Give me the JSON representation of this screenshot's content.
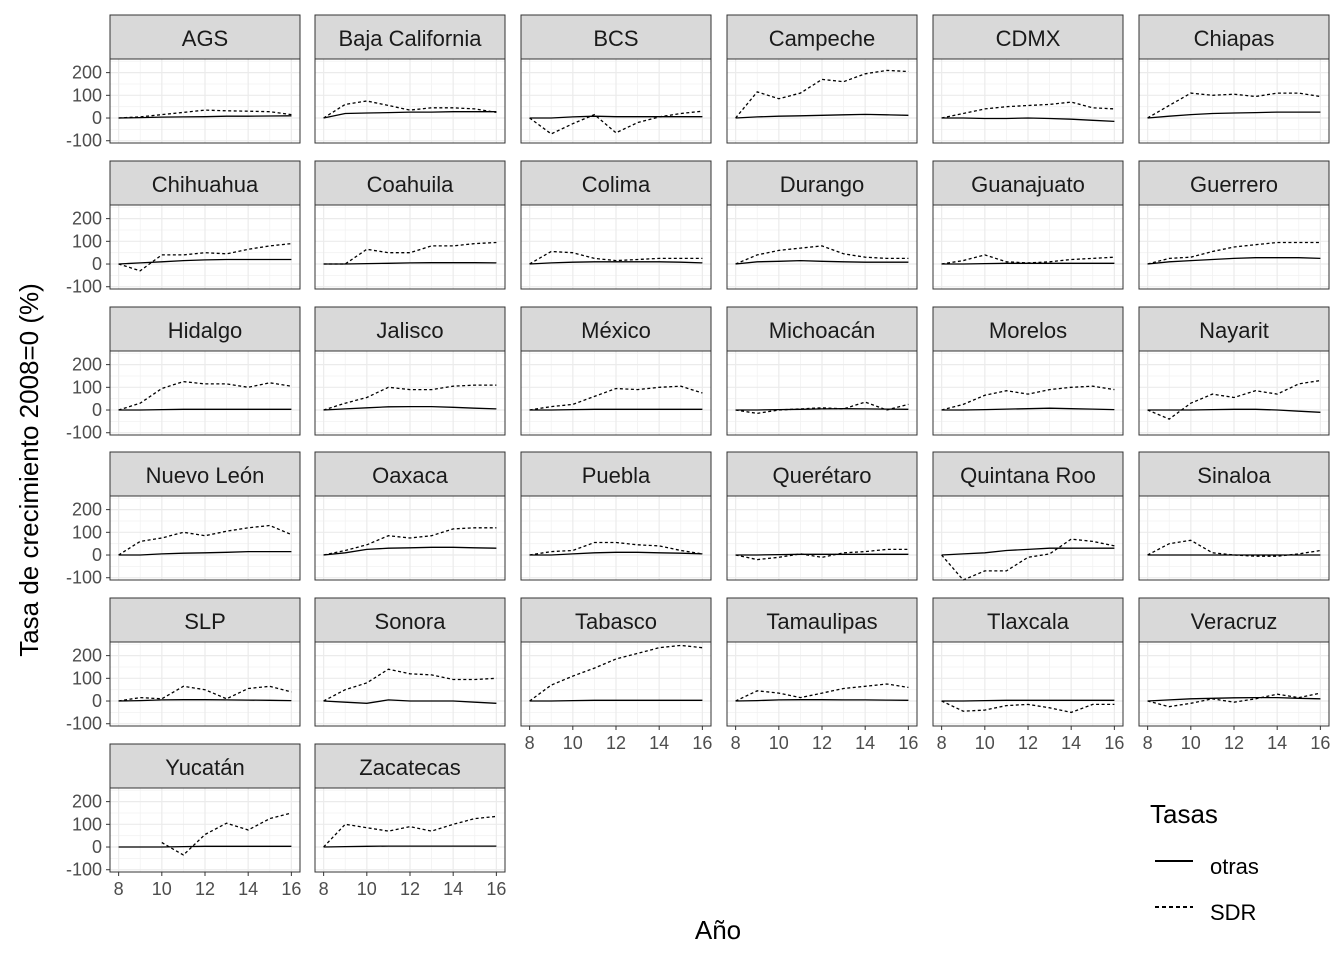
{
  "chart_data": {
    "type": "line",
    "facet_layout": "6 columns x 6 rows (facet_wrap)",
    "ylabel": "Tasa de crecimiento 2008=0 (%)",
    "xlabel": "Año",
    "x": [
      8,
      9,
      10,
      11,
      12,
      13,
      14,
      15,
      16
    ],
    "xlim": [
      7.6,
      16.4
    ],
    "ylim": [
      -110,
      260
    ],
    "x_ticks": [
      8,
      10,
      12,
      14,
      16
    ],
    "y_ticks": [
      -100,
      0,
      100,
      200
    ],
    "grid": true,
    "legend": {
      "title": "Tasas",
      "position": "bottom-right",
      "entries": [
        {
          "name": "otras",
          "linetype": "solid"
        },
        {
          "name": "SDR",
          "linetype": "dashed"
        }
      ]
    },
    "series_names": [
      "otras",
      "SDR"
    ],
    "panels": [
      {
        "title": "AGS",
        "otras": [
          0,
          2,
          4,
          5,
          6,
          8,
          8,
          9,
          10
        ],
        "SDR": [
          0,
          5,
          15,
          25,
          35,
          32,
          30,
          28,
          15
        ]
      },
      {
        "title": "Baja California",
        "otras": [
          0,
          20,
          22,
          24,
          26,
          26,
          28,
          28,
          28
        ],
        "SDR": [
          0,
          60,
          75,
          55,
          35,
          45,
          45,
          40,
          25
        ]
      },
      {
        "title": "BCS",
        "otras": [
          0,
          0,
          5,
          8,
          6,
          6,
          6,
          6,
          6
        ],
        "SDR": [
          0,
          -70,
          -25,
          15,
          -65,
          -20,
          5,
          20,
          30
        ]
      },
      {
        "title": "Campeche",
        "otras": [
          0,
          5,
          8,
          10,
          12,
          14,
          16,
          14,
          12
        ],
        "SDR": [
          0,
          115,
          85,
          110,
          170,
          160,
          195,
          210,
          205
        ]
      },
      {
        "title": "CDMX",
        "otras": [
          0,
          0,
          -2,
          -2,
          0,
          -2,
          -5,
          -10,
          -15
        ],
        "SDR": [
          0,
          20,
          40,
          50,
          55,
          60,
          70,
          45,
          40
        ]
      },
      {
        "title": "Chiapas",
        "otras": [
          0,
          8,
          15,
          20,
          22,
          24,
          26,
          26,
          26
        ],
        "SDR": [
          0,
          55,
          110,
          100,
          105,
          95,
          110,
          110,
          95
        ]
      },
      {
        "title": "Chihuahua",
        "otras": [
          0,
          5,
          10,
          15,
          18,
          20,
          20,
          20,
          20
        ],
        "SDR": [
          0,
          -30,
          40,
          40,
          50,
          45,
          65,
          80,
          90
        ]
      },
      {
        "title": "Coahuila",
        "otras": [
          0,
          0,
          2,
          3,
          5,
          6,
          6,
          6,
          5
        ],
        "SDR": [
          0,
          0,
          65,
          50,
          50,
          80,
          80,
          90,
          95
        ]
      },
      {
        "title": "Colima",
        "otras": [
          0,
          5,
          8,
          10,
          10,
          10,
          10,
          8,
          5
        ],
        "SDR": [
          0,
          55,
          50,
          25,
          15,
          20,
          25,
          25,
          25
        ]
      },
      {
        "title": "Durango",
        "otras": [
          0,
          10,
          12,
          15,
          12,
          10,
          8,
          8,
          8
        ],
        "SDR": [
          0,
          40,
          60,
          70,
          80,
          45,
          30,
          25,
          25
        ]
      },
      {
        "title": "Guanajuato",
        "otras": [
          0,
          0,
          2,
          3,
          3,
          3,
          3,
          3,
          3
        ],
        "SDR": [
          0,
          15,
          40,
          10,
          5,
          10,
          20,
          25,
          30
        ]
      },
      {
        "title": "Guerrero",
        "otras": [
          0,
          10,
          15,
          20,
          25,
          28,
          28,
          28,
          25
        ],
        "SDR": [
          0,
          25,
          30,
          55,
          75,
          85,
          95,
          95,
          95
        ]
      },
      {
        "title": "Hidalgo",
        "otras": [
          0,
          0,
          2,
          3,
          3,
          3,
          3,
          3,
          3
        ],
        "SDR": [
          0,
          30,
          95,
          125,
          115,
          115,
          100,
          120,
          105
        ]
      },
      {
        "title": "Jalisco",
        "otras": [
          0,
          5,
          10,
          14,
          15,
          15,
          12,
          8,
          5
        ],
        "SDR": [
          0,
          30,
          55,
          100,
          90,
          90,
          105,
          110,
          110
        ]
      },
      {
        "title": "México",
        "otras": [
          0,
          0,
          2,
          3,
          3,
          3,
          3,
          3,
          3
        ],
        "SDR": [
          0,
          15,
          25,
          60,
          95,
          90,
          100,
          105,
          75
        ]
      },
      {
        "title": "Michoacán",
        "otras": [
          0,
          0,
          2,
          3,
          5,
          6,
          5,
          4,
          3
        ],
        "SDR": [
          0,
          -15,
          0,
          5,
          10,
          5,
          35,
          0,
          25
        ]
      },
      {
        "title": "Morelos",
        "otras": [
          0,
          0,
          2,
          4,
          6,
          8,
          6,
          4,
          2
        ],
        "SDR": [
          0,
          25,
          65,
          85,
          70,
          90,
          100,
          105,
          90
        ]
      },
      {
        "title": "Nayarit",
        "otras": [
          0,
          0,
          0,
          2,
          3,
          3,
          0,
          -5,
          -10
        ],
        "SDR": [
          0,
          -40,
          30,
          70,
          55,
          85,
          70,
          115,
          130
        ]
      },
      {
        "title": "Nuevo León",
        "otras": [
          0,
          0,
          5,
          8,
          10,
          12,
          15,
          15,
          15
        ],
        "SDR": [
          0,
          60,
          75,
          100,
          85,
          105,
          120,
          130,
          90
        ]
      },
      {
        "title": "Oaxaca",
        "otras": [
          0,
          10,
          25,
          30,
          32,
          34,
          34,
          32,
          30
        ],
        "SDR": [
          0,
          20,
          45,
          85,
          75,
          85,
          115,
          120,
          120
        ]
      },
      {
        "title": "Puebla",
        "otras": [
          0,
          0,
          5,
          10,
          12,
          12,
          10,
          8,
          5
        ],
        "SDR": [
          0,
          15,
          20,
          55,
          55,
          45,
          40,
          20,
          5
        ]
      },
      {
        "title": "Querétaro",
        "otras": [
          0,
          0,
          2,
          3,
          3,
          3,
          3,
          3,
          3
        ],
        "SDR": [
          0,
          -20,
          -10,
          5,
          -10,
          10,
          15,
          25,
          25
        ]
      },
      {
        "title": "Quintana Roo",
        "otras": [
          0,
          5,
          10,
          20,
          25,
          30,
          30,
          30,
          30
        ],
        "SDR": [
          0,
          -110,
          -70,
          -70,
          -10,
          5,
          70,
          60,
          40
        ]
      },
      {
        "title": "Sinaloa",
        "otras": [
          0,
          0,
          0,
          0,
          0,
          0,
          0,
          0,
          0
        ],
        "SDR": [
          0,
          50,
          65,
          10,
          0,
          -5,
          -5,
          5,
          20
        ]
      },
      {
        "title": "SLP",
        "otras": [
          0,
          2,
          5,
          6,
          6,
          5,
          4,
          3,
          2
        ],
        "SDR": [
          0,
          15,
          10,
          65,
          50,
          10,
          55,
          65,
          40
        ]
      },
      {
        "title": "Sonora",
        "otras": [
          0,
          -5,
          -10,
          5,
          0,
          0,
          0,
          -5,
          -10
        ],
        "SDR": [
          0,
          50,
          80,
          140,
          120,
          115,
          95,
          95,
          100
        ]
      },
      {
        "title": "Tabasco",
        "otras": [
          0,
          0,
          2,
          3,
          3,
          3,
          3,
          3,
          3
        ],
        "SDR": [
          0,
          70,
          110,
          145,
          185,
          210,
          235,
          245,
          235
        ]
      },
      {
        "title": "Tamaulipas",
        "otras": [
          0,
          2,
          5,
          6,
          6,
          5,
          5,
          4,
          3
        ],
        "SDR": [
          0,
          45,
          35,
          15,
          35,
          55,
          65,
          75,
          60
        ]
      },
      {
        "title": "Tlaxcala",
        "otras": [
          0,
          0,
          2,
          3,
          3,
          3,
          3,
          3,
          3
        ],
        "SDR": [
          0,
          -45,
          -40,
          -20,
          -15,
          -30,
          -50,
          -15,
          -15
        ]
      },
      {
        "title": "Veracruz",
        "otras": [
          0,
          5,
          10,
          12,
          14,
          15,
          15,
          12,
          10
        ],
        "SDR": [
          0,
          -25,
          -10,
          10,
          -5,
          10,
          30,
          15,
          35
        ]
      },
      {
        "title": "Yucatán",
        "otras": [
          0,
          0,
          0,
          2,
          3,
          3,
          3,
          3,
          3
        ],
        "SDR": [
          null,
          null,
          20,
          -35,
          55,
          105,
          75,
          125,
          150
        ]
      },
      {
        "title": "Zacatecas",
        "otras": [
          0,
          2,
          3,
          4,
          4,
          4,
          4,
          4,
          4
        ],
        "SDR": [
          0,
          100,
          85,
          70,
          90,
          70,
          100,
          125,
          135
        ]
      }
    ]
  }
}
